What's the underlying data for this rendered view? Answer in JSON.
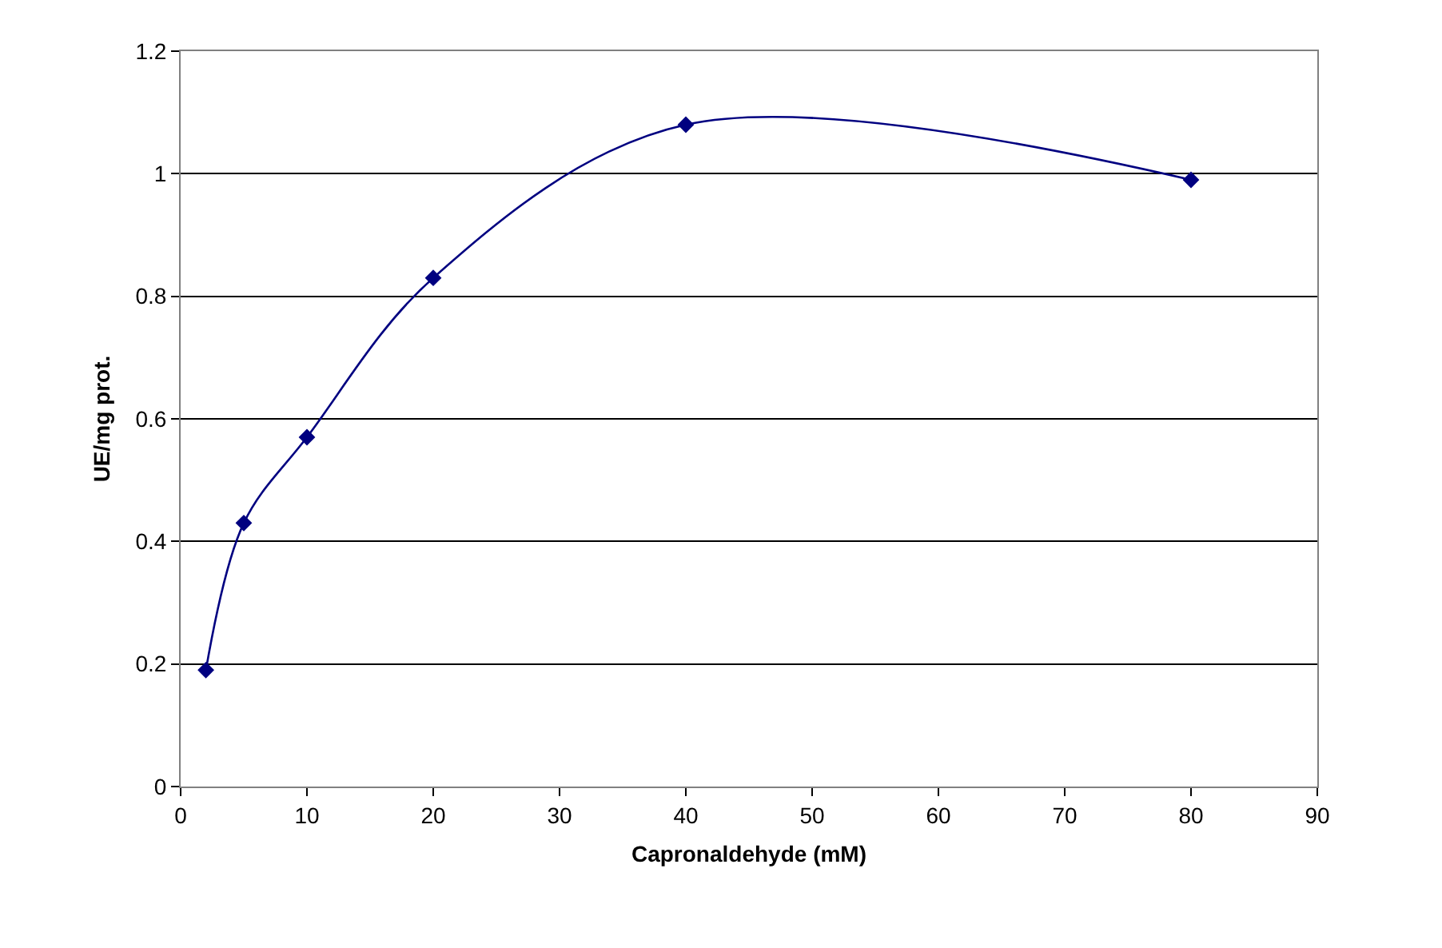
{
  "chart_data": {
    "type": "line",
    "xlabel": "Capronaldehyde (mM)",
    "ylabel": "UE/mg prot.",
    "x": [
      2,
      5,
      10,
      20,
      40,
      80
    ],
    "series": [
      {
        "color": "#000080",
        "values": [
          0.19,
          0.43,
          0.57,
          0.83,
          1.08,
          0.99
        ]
      }
    ],
    "xlim": [
      0,
      90
    ],
    "xticks": [
      0,
      10,
      20,
      30,
      40,
      50,
      60,
      70,
      80,
      90
    ],
    "ylim": [
      0,
      1.2
    ],
    "yticks": [
      0,
      0.2,
      0.4,
      0.6,
      0.8,
      1,
      1.2
    ],
    "grid": "y",
    "legend": false,
    "marker": "diamond",
    "line_style": "solid"
  }
}
